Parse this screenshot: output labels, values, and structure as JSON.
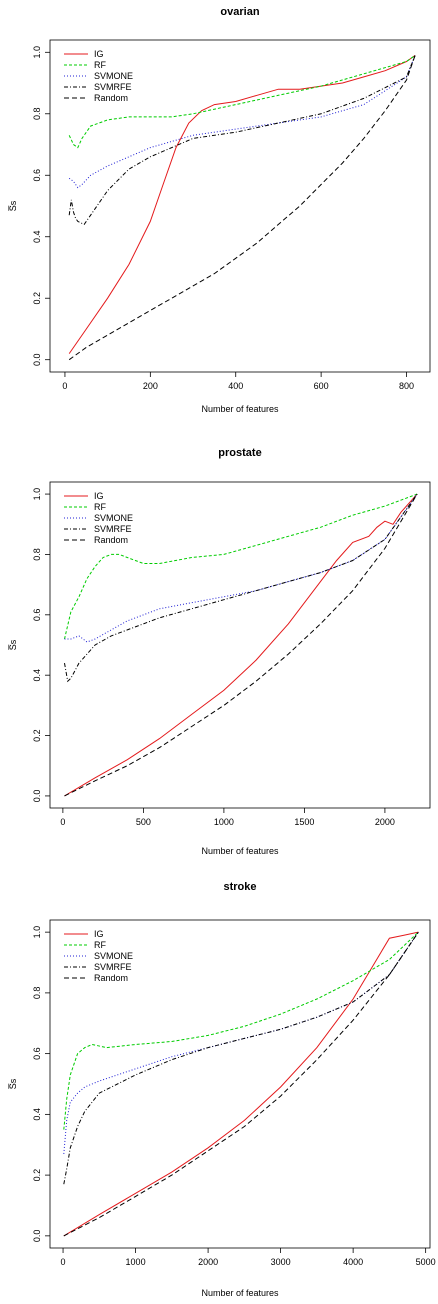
{
  "chart_data": [
    {
      "type": "line",
      "title": "ovarian",
      "xlabel": "Number of features",
      "ylabel": "S̅s",
      "xlim": [
        0,
        820
      ],
      "ylim": [
        0,
        1
      ],
      "xticks": [
        0,
        200,
        400,
        600,
        800
      ],
      "yticks": [
        "0.0",
        "0.2",
        "0.4",
        "0.6",
        "0.8",
        "1.0"
      ],
      "legend_position": "top-left",
      "series": [
        {
          "name": "IG",
          "color": "#e41a1c",
          "dash": "solid",
          "x": [
            10,
            50,
            100,
            150,
            200,
            230,
            260,
            290,
            320,
            350,
            400,
            450,
            500,
            550,
            600,
            650,
            700,
            750,
            800,
            820
          ],
          "y": [
            0.02,
            0.1,
            0.2,
            0.31,
            0.45,
            0.57,
            0.69,
            0.77,
            0.81,
            0.83,
            0.84,
            0.86,
            0.88,
            0.88,
            0.89,
            0.9,
            0.92,
            0.94,
            0.97,
            0.99
          ]
        },
        {
          "name": "RF",
          "color": "#00cc00",
          "dash": "3,2",
          "x": [
            10,
            20,
            30,
            40,
            60,
            100,
            150,
            200,
            250,
            300,
            400,
            500,
            600,
            700,
            800,
            820
          ],
          "y": [
            0.73,
            0.7,
            0.69,
            0.72,
            0.76,
            0.78,
            0.79,
            0.79,
            0.79,
            0.8,
            0.83,
            0.86,
            0.89,
            0.93,
            0.97,
            0.99
          ]
        },
        {
          "name": "SVMONE",
          "color": "#1f1fd4",
          "dash": "1,2",
          "x": [
            10,
            20,
            30,
            40,
            60,
            100,
            150,
            200,
            300,
            400,
            500,
            600,
            700,
            800,
            820
          ],
          "y": [
            0.59,
            0.58,
            0.56,
            0.57,
            0.6,
            0.63,
            0.66,
            0.69,
            0.73,
            0.75,
            0.77,
            0.79,
            0.83,
            0.92,
            0.99
          ]
        },
        {
          "name": "SVMRFE",
          "color": "#000000",
          "dash": "4,2,1,2",
          "x": [
            10,
            15,
            20,
            25,
            30,
            45,
            60,
            100,
            150,
            200,
            300,
            400,
            500,
            600,
            700,
            800,
            820
          ],
          "y": [
            0.47,
            0.52,
            0.48,
            0.46,
            0.45,
            0.44,
            0.47,
            0.55,
            0.62,
            0.66,
            0.72,
            0.74,
            0.77,
            0.8,
            0.85,
            0.92,
            0.99
          ]
        },
        {
          "name": "Random",
          "color": "#000000",
          "dash": "5,3",
          "x": [
            10,
            50,
            100,
            150,
            200,
            250,
            300,
            350,
            400,
            450,
            500,
            550,
            600,
            650,
            700,
            750,
            800,
            820
          ],
          "y": [
            0.0,
            0.04,
            0.08,
            0.12,
            0.16,
            0.2,
            0.24,
            0.28,
            0.33,
            0.38,
            0.44,
            0.5,
            0.57,
            0.64,
            0.72,
            0.81,
            0.91,
            0.99
          ]
        }
      ]
    },
    {
      "type": "line",
      "title": "prostate",
      "xlabel": "Number of features",
      "ylabel": "S̅s",
      "xlim": [
        0,
        2200
      ],
      "ylim": [
        0,
        1
      ],
      "xticks": [
        0,
        500,
        1000,
        1500,
        2000
      ],
      "yticks": [
        "0.0",
        "0.2",
        "0.4",
        "0.6",
        "0.8",
        "1.0"
      ],
      "legend_position": "top-left",
      "series": [
        {
          "name": "IG",
          "color": "#e41a1c",
          "dash": "solid",
          "x": [
            10,
            200,
            400,
            600,
            800,
            1000,
            1200,
            1400,
            1600,
            1700,
            1800,
            1900,
            1950,
            2000,
            2050,
            2100,
            2200
          ],
          "y": [
            0.0,
            0.06,
            0.12,
            0.19,
            0.27,
            0.35,
            0.45,
            0.57,
            0.71,
            0.78,
            0.84,
            0.86,
            0.89,
            0.91,
            0.9,
            0.94,
            1.0
          ]
        },
        {
          "name": "RF",
          "color": "#00cc00",
          "dash": "3,2",
          "x": [
            10,
            50,
            100,
            150,
            200,
            250,
            300,
            350,
            400,
            500,
            600,
            800,
            1000,
            1200,
            1400,
            1600,
            1800,
            2000,
            2200
          ],
          "y": [
            0.52,
            0.61,
            0.66,
            0.72,
            0.76,
            0.79,
            0.8,
            0.8,
            0.79,
            0.77,
            0.77,
            0.79,
            0.8,
            0.83,
            0.86,
            0.89,
            0.93,
            0.96,
            1.0
          ]
        },
        {
          "name": "SVMONE",
          "color": "#1f1fd4",
          "dash": "1,2",
          "x": [
            10,
            50,
            100,
            150,
            200,
            300,
            400,
            600,
            800,
            1000,
            1200,
            1400,
            1600,
            1800,
            2000,
            2200
          ],
          "y": [
            0.52,
            0.52,
            0.53,
            0.51,
            0.52,
            0.55,
            0.58,
            0.62,
            0.64,
            0.66,
            0.68,
            0.71,
            0.74,
            0.78,
            0.85,
            1.0
          ]
        },
        {
          "name": "SVMRFE",
          "color": "#000000",
          "dash": "4,2,1,2",
          "x": [
            10,
            30,
            50,
            80,
            100,
            150,
            200,
            300,
            400,
            600,
            800,
            1000,
            1200,
            1400,
            1600,
            1800,
            2000,
            2200
          ],
          "y": [
            0.44,
            0.38,
            0.39,
            0.42,
            0.44,
            0.47,
            0.5,
            0.53,
            0.55,
            0.59,
            0.62,
            0.65,
            0.68,
            0.71,
            0.74,
            0.78,
            0.85,
            1.0
          ]
        },
        {
          "name": "Random",
          "color": "#000000",
          "dash": "5,3",
          "x": [
            10,
            200,
            400,
            600,
            800,
            1000,
            1200,
            1400,
            1600,
            1800,
            2000,
            2200
          ],
          "y": [
            0.0,
            0.05,
            0.1,
            0.16,
            0.23,
            0.3,
            0.38,
            0.47,
            0.57,
            0.68,
            0.82,
            1.0
          ]
        }
      ]
    },
    {
      "type": "line",
      "title": "stroke",
      "xlabel": "Number of features",
      "ylabel": "S̅s",
      "xlim": [
        0,
        4900
      ],
      "ylim": [
        0,
        1
      ],
      "xticks": [
        0,
        1000,
        2000,
        3000,
        4000,
        5000
      ],
      "yticks": [
        "0.0",
        "0.2",
        "0.4",
        "0.6",
        "0.8",
        "1.0"
      ],
      "legend_position": "top-left",
      "series": [
        {
          "name": "IG",
          "color": "#e41a1c",
          "dash": "solid",
          "x": [
            10,
            500,
            1000,
            1500,
            2000,
            2500,
            3000,
            3500,
            4000,
            4300,
            4500,
            4700,
            4900
          ],
          "y": [
            0.0,
            0.07,
            0.14,
            0.21,
            0.29,
            0.38,
            0.49,
            0.62,
            0.78,
            0.9,
            0.98,
            0.99,
            1.0
          ]
        },
        {
          "name": "RF",
          "color": "#00cc00",
          "dash": "3,2",
          "x": [
            10,
            50,
            100,
            200,
            300,
            400,
            600,
            1000,
            1500,
            2000,
            2500,
            3000,
            3500,
            4000,
            4500,
            4900
          ],
          "y": [
            0.35,
            0.45,
            0.53,
            0.6,
            0.62,
            0.63,
            0.62,
            0.63,
            0.64,
            0.66,
            0.69,
            0.73,
            0.78,
            0.84,
            0.91,
            1.0
          ]
        },
        {
          "name": "SVMONE",
          "color": "#1f1fd4",
          "dash": "1,2",
          "x": [
            10,
            50,
            100,
            200,
            300,
            500,
            1000,
            1500,
            2000,
            2500,
            3000,
            3500,
            4000,
            4500,
            4900
          ],
          "y": [
            0.27,
            0.38,
            0.44,
            0.47,
            0.49,
            0.51,
            0.55,
            0.59,
            0.62,
            0.65,
            0.68,
            0.72,
            0.77,
            0.86,
            1.0
          ]
        },
        {
          "name": "SVMRFE",
          "color": "#000000",
          "dash": "4,2,1,2",
          "x": [
            10,
            50,
            100,
            200,
            300,
            500,
            1000,
            1500,
            2000,
            2500,
            3000,
            3500,
            4000,
            4500,
            4900
          ],
          "y": [
            0.17,
            0.22,
            0.29,
            0.36,
            0.41,
            0.47,
            0.53,
            0.58,
            0.62,
            0.65,
            0.68,
            0.72,
            0.77,
            0.86,
            1.0
          ]
        },
        {
          "name": "Random",
          "color": "#000000",
          "dash": "5,3",
          "x": [
            10,
            500,
            1000,
            1500,
            2000,
            2500,
            3000,
            3500,
            4000,
            4500,
            4900
          ],
          "y": [
            0.0,
            0.06,
            0.13,
            0.2,
            0.28,
            0.36,
            0.46,
            0.58,
            0.71,
            0.86,
            1.0
          ]
        }
      ]
    }
  ]
}
